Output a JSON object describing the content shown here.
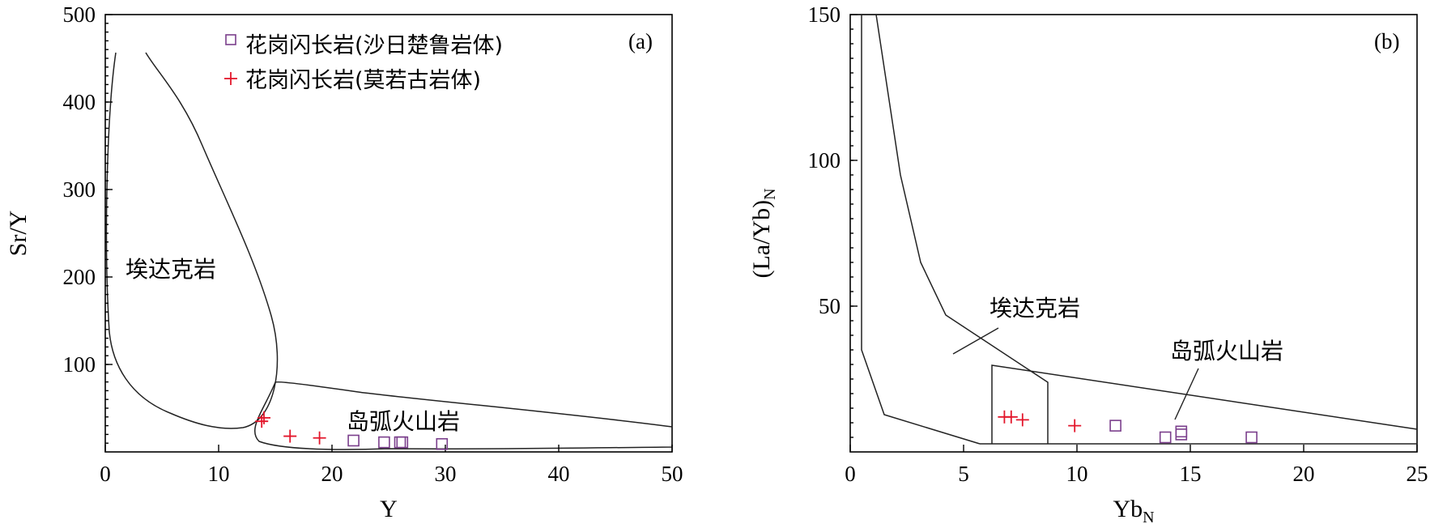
{
  "chart_data": [
    {
      "type": "scatter",
      "panel_label": "(a)",
      "xlabel": "Y",
      "ylabel": "Sr/Y",
      "xlim": [
        0,
        50
      ],
      "ylim": [
        0,
        500
      ],
      "xticks": [
        "0",
        "10",
        "20",
        "30",
        "40",
        "50"
      ],
      "yticks": [
        "100",
        "200",
        "300",
        "400",
        "500"
      ],
      "field_labels": [
        "埃达克岩",
        "岛弧火山岩"
      ],
      "legend": {
        "placement": "top-center",
        "entries": [
          "花岗闪长岩(沙日楚鲁岩体)",
          "花岗闪长岩(莫若古岩体)"
        ]
      },
      "series": [
        {
          "name": "花岗闪长岩(沙日楚鲁岩体)",
          "marker": "square",
          "color": "#7B3F8C",
          "points": [
            [
              21.9,
              13
            ],
            [
              24.6,
              11
            ],
            [
              26.0,
              11
            ],
            [
              26.2,
              11
            ],
            [
              29.7,
              9
            ]
          ]
        },
        {
          "name": "花岗闪长岩(莫若古岩体)",
          "marker": "plus",
          "color": "#E3162B",
          "points": [
            [
              13.8,
              35
            ],
            [
              14.0,
              39
            ],
            [
              16.3,
              18
            ],
            [
              18.9,
              16
            ]
          ]
        }
      ]
    },
    {
      "type": "scatter",
      "panel_label": "(b)",
      "xlabel": "Yb",
      "xlabel_sub": "N",
      "ylabel": "(La/Yb)",
      "ylabel_sub": "N",
      "xlim": [
        0,
        25
      ],
      "ylim": [
        0,
        150
      ],
      "xticks": [
        "0",
        "5",
        "10",
        "15",
        "20",
        "25"
      ],
      "yticks": [
        "50",
        "100",
        "150"
      ],
      "field_labels": [
        "埃达克岩",
        "岛弧火山岩"
      ],
      "series": [
        {
          "name": "花岗闪长岩(沙日楚鲁岩体)",
          "marker": "square",
          "color": "#7B3F8C",
          "points": [
            [
              11.7,
              9
            ],
            [
              13.9,
              5
            ],
            [
              14.6,
              6
            ],
            [
              14.6,
              7
            ],
            [
              17.7,
              5
            ]
          ]
        },
        {
          "name": "花岗闪长岩(莫若古岩体)",
          "marker": "plus",
          "color": "#E3162B",
          "points": [
            [
              6.8,
              12
            ],
            [
              7.1,
              12
            ],
            [
              7.6,
              11
            ],
            [
              9.9,
              9
            ]
          ]
        }
      ]
    }
  ]
}
